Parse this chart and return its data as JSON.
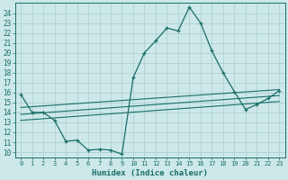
{
  "xlabel": "Humidex (Indice chaleur)",
  "bg_color": "#cce8e8",
  "line_color": "#1a6e6a",
  "xlim": [
    -0.5,
    23.5
  ],
  "ylim": [
    9.5,
    25.0
  ],
  "yticks": [
    10,
    11,
    12,
    13,
    14,
    15,
    16,
    17,
    18,
    19,
    20,
    21,
    22,
    23,
    24
  ],
  "xticks": [
    0,
    1,
    2,
    3,
    4,
    5,
    6,
    7,
    8,
    9,
    10,
    11,
    12,
    13,
    14,
    15,
    16,
    17,
    18,
    19,
    20,
    21,
    22,
    23
  ],
  "main_x": [
    0,
    1,
    2,
    3,
    4,
    5,
    6,
    7,
    8,
    9,
    10,
    11,
    12,
    13,
    14,
    15,
    16,
    17,
    18,
    19,
    20,
    21,
    22,
    23
  ],
  "main_y": [
    15.8,
    14.0,
    14.0,
    13.2,
    11.1,
    11.2,
    10.2,
    10.3,
    10.2,
    9.8,
    17.5,
    20.0,
    21.2,
    22.5,
    22.2,
    24.6,
    23.0,
    20.2,
    18.0,
    16.1,
    14.3,
    14.8,
    15.4,
    16.2
  ],
  "line1_x": [
    0,
    23
  ],
  "line1_y": [
    14.5,
    16.3
  ],
  "line2_x": [
    0,
    23
  ],
  "line2_y": [
    13.8,
    15.7
  ],
  "line3_x": [
    0,
    23
  ],
  "line3_y": [
    13.2,
    15.1
  ],
  "grid_color": "#aacccc",
  "marker": "+"
}
